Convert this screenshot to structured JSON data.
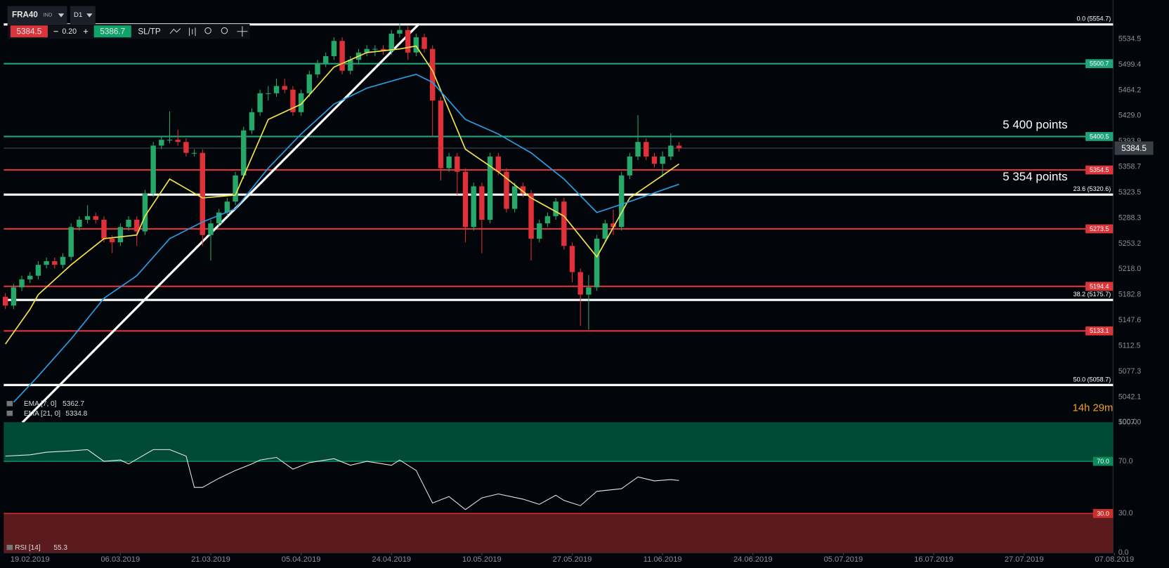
{
  "toolbar": {
    "symbol": "FRA40",
    "market": "IND",
    "timeframe": "D1",
    "bid": 5384.5,
    "spread": "0.20",
    "ask": 5386.7,
    "sltp": "SL/TP"
  },
  "countdown": "14h 29m",
  "chart_data": [
    {
      "type": "candlestick",
      "series": {
        "open": [
          5180,
          5168,
          5193,
          5204,
          5209,
          5224,
          5229,
          5224,
          5235,
          5276,
          5286,
          5291,
          5286,
          5260,
          5255,
          5276,
          5286,
          5270,
          5322,
          5388,
          5396,
          5396,
          5393,
          5378,
          5378,
          5265,
          5281,
          5296,
          5311,
          5347,
          5409,
          5434,
          5460,
          5460,
          5470,
          5465,
          5434,
          5460,
          5486,
          5501,
          5511,
          5532,
          5491,
          5506,
          5516,
          5521,
          5521,
          5518,
          5542,
          5547,
          5516,
          5537,
          5521,
          5450,
          5357,
          5373,
          5352,
          5276,
          5332,
          5286,
          5373,
          5352,
          5301,
          5332,
          5322,
          5260,
          5281,
          5291,
          5311,
          5250,
          5214,
          5183,
          5193,
          5260,
          5281,
          5276,
          5347,
          5373,
          5393,
          5373,
          5363,
          5373,
          5388
        ],
        "high": [
          5185,
          5198,
          5209,
          5214,
          5229,
          5234,
          5234,
          5240,
          5281,
          5291,
          5306,
          5296,
          5291,
          5265,
          5281,
          5291,
          5291,
          5327,
          5393,
          5401,
          5435,
          5410,
          5398,
          5383,
          5383,
          5286,
          5301,
          5316,
          5352,
          5414,
          5439,
          5465,
          5470,
          5480,
          5480,
          5470,
          5465,
          5491,
          5506,
          5516,
          5537,
          5537,
          5511,
          5521,
          5526,
          5526,
          5526,
          5547,
          5556,
          5552,
          5542,
          5542,
          5526,
          5455,
          5378,
          5378,
          5357,
          5337,
          5337,
          5378,
          5378,
          5357,
          5337,
          5337,
          5327,
          5286,
          5296,
          5316,
          5316,
          5255,
          5219,
          5210,
          5265,
          5286,
          5300,
          5352,
          5378,
          5430,
          5398,
          5378,
          5380,
          5405,
          5393
        ],
        "low": [
          5163,
          5163,
          5188,
          5199,
          5204,
          5219,
          5219,
          5219,
          5230,
          5271,
          5281,
          5281,
          5255,
          5240,
          5250,
          5271,
          5250,
          5265,
          5317,
          5383,
          5391,
          5388,
          5373,
          5373,
          5250,
          5230,
          5276,
          5291,
          5306,
          5342,
          5404,
          5429,
          5450,
          5455,
          5460,
          5429,
          5429,
          5455,
          5481,
          5496,
          5506,
          5486,
          5486,
          5501,
          5511,
          5511,
          5513,
          5513,
          5537,
          5506,
          5511,
          5516,
          5400,
          5340,
          5352,
          5320,
          5255,
          5271,
          5240,
          5281,
          5347,
          5296,
          5296,
          5317,
          5230,
          5255,
          5276,
          5286,
          5245,
          5200,
          5140,
          5135,
          5188,
          5255,
          5265,
          5271,
          5342,
          5368,
          5368,
          5358,
          5345,
          5368,
          5380
        ],
        "close": [
          5168,
          5193,
          5204,
          5209,
          5224,
          5229,
          5224,
          5235,
          5276,
          5286,
          5291,
          5286,
          5260,
          5255,
          5276,
          5286,
          5270,
          5322,
          5388,
          5396,
          5396,
          5393,
          5378,
          5378,
          5265,
          5281,
          5296,
          5311,
          5347,
          5409,
          5434,
          5460,
          5460,
          5470,
          5465,
          5434,
          5460,
          5486,
          5501,
          5511,
          5532,
          5491,
          5506,
          5516,
          5521,
          5521,
          5518,
          5542,
          5547,
          5516,
          5537,
          5521,
          5450,
          5357,
          5373,
          5352,
          5276,
          5332,
          5286,
          5373,
          5352,
          5301,
          5332,
          5322,
          5260,
          5281,
          5291,
          5311,
          5250,
          5214,
          5183,
          5193,
          5260,
          5281,
          5276,
          5347,
          5373,
          5393,
          5373,
          5363,
          5373,
          5388,
          5384.5
        ],
        "up_color": "#26a86a",
        "down_color": "#e0303a"
      },
      "lines": [
        {
          "name": "EMA [7, 0]",
          "color": "#f2e14c",
          "last": 5362.7,
          "x": [
            0,
            3,
            4,
            8,
            12,
            16,
            17,
            20,
            24,
            28,
            32,
            36,
            40,
            44,
            48,
            50,
            52,
            56,
            60,
            64,
            68,
            72,
            76,
            80,
            82
          ],
          "values": [
            5115,
            5163,
            5183,
            5224,
            5260,
            5265,
            5291,
            5342,
            5316,
            5320,
            5424,
            5445,
            5496,
            5516,
            5521,
            5525,
            5491,
            5383,
            5352,
            5316,
            5291,
            5235,
            5316,
            5347,
            5362.7
          ]
        },
        {
          "name": "EMA [21, 0]",
          "color": "#2b9be0",
          "last": 5334.8,
          "x": [
            1,
            4,
            8,
            12,
            16,
            20,
            24,
            28,
            32,
            36,
            40,
            44,
            48,
            50,
            52,
            56,
            60,
            64,
            68,
            72,
            76,
            80,
            82
          ],
          "values": [
            5035,
            5071,
            5122,
            5178,
            5209,
            5260,
            5283,
            5301,
            5357,
            5404,
            5445,
            5467,
            5480,
            5486,
            5475,
            5424,
            5404,
            5378,
            5342,
            5296,
            5311,
            5327,
            5334.8
          ]
        }
      ],
      "levels": [
        {
          "value": 5500.7,
          "color": "#1fa37a"
        },
        {
          "value": 5400.5,
          "color": "#1fa37a"
        },
        {
          "value": 5354.5,
          "color": "#d9353b"
        },
        {
          "value": 5273.5,
          "color": "#d9353b"
        },
        {
          "value": 5194.4,
          "color": "#d9353b"
        },
        {
          "value": 5133.1,
          "color": "#d9353b"
        }
      ],
      "fib_levels": [
        {
          "value": 5554.7,
          "label": "0.0 (5554.7)"
        },
        {
          "value": 5320.6,
          "label": "23.6 (5320.6)"
        },
        {
          "value": 5175.7,
          "label": "38.2 (5175.7)"
        },
        {
          "value": 5058.7,
          "label": "50.0 (5058.7)"
        }
      ],
      "last_price": 5384.5,
      "annotations": [
        "5 400 points",
        "5 354 points"
      ],
      "ylim": [
        5007,
        5583
      ],
      "yticks": [
        5534.5,
        5499.4,
        5464.2,
        {
          "value": 5429.0,
          "label": "5429.0"
        },
        5393.9,
        5358.7,
        5323.5,
        5288.3,
        5253.2,
        {
          "value": 5218.0,
          "label": "5218.0"
        },
        5182.8,
        5147.6,
        5112.5,
        5077.3,
        5042.1,
        {
          "value": 5007.0,
          "label": "5007.0"
        }
      ],
      "xlim": [
        -0.2,
        135.2
      ],
      "xticks": [
        {
          "value": 3,
          "label": "19.02.2019"
        },
        {
          "value": 14,
          "label": "06.03.2019"
        },
        {
          "value": 25,
          "label": "21.03.2019"
        },
        {
          "value": 36,
          "label": "05.04.2019"
        },
        {
          "value": 47,
          "label": "24.04.2019"
        },
        {
          "value": 58,
          "label": "10.05.2019"
        },
        {
          "value": 69,
          "label": "27.05.2019"
        },
        {
          "value": 80,
          "label": "11.06.2019"
        },
        {
          "value": 91,
          "label": "24.06.2019"
        },
        {
          "value": 102,
          "label": "05.07.2019"
        },
        {
          "value": 113,
          "label": "16.07.2019"
        },
        {
          "value": 124,
          "label": "27.07.2019"
        },
        {
          "value": 135,
          "label": "07.08.2019"
        }
      ],
      "grid": false
    },
    {
      "type": "line",
      "name": "RSI [14]",
      "last": 55.3,
      "color": "#e8e8e8",
      "x": [
        0,
        3,
        5,
        8,
        10,
        12,
        14,
        15,
        18,
        20,
        22,
        23,
        24,
        26,
        28,
        30,
        31,
        33,
        35,
        37,
        40,
        42,
        44,
        47,
        48,
        50,
        52,
        54,
        56,
        58,
        60,
        63,
        65,
        67,
        68,
        70,
        72,
        75,
        77,
        79,
        81,
        82
      ],
      "values": [
        74,
        75,
        77,
        78,
        79,
        70,
        71,
        68,
        79,
        79,
        74,
        50,
        50,
        57,
        63,
        68,
        71,
        73,
        64,
        69,
        72,
        67,
        70,
        67,
        71,
        63,
        38,
        43,
        33,
        42,
        45,
        41,
        37,
        44,
        40,
        36,
        47,
        49,
        58,
        55,
        56,
        55.3
      ],
      "levels": [
        {
          "value": 70,
          "label": "70.0",
          "color": "#0b8a5c",
          "band_color": "#004a36"
        },
        {
          "value": 30,
          "label": "30.0",
          "color": "#c9302c",
          "band_color": "#5a1a1e"
        }
      ],
      "ylim": [
        0,
        100
      ],
      "yticks": [
        {
          "value": 100,
          "label": "100.0"
        },
        {
          "value": 70,
          "label": "70.0"
        },
        {
          "value": 30,
          "label": "30.0"
        },
        {
          "value": 0,
          "label": "0.0"
        }
      ],
      "grid": false
    }
  ]
}
